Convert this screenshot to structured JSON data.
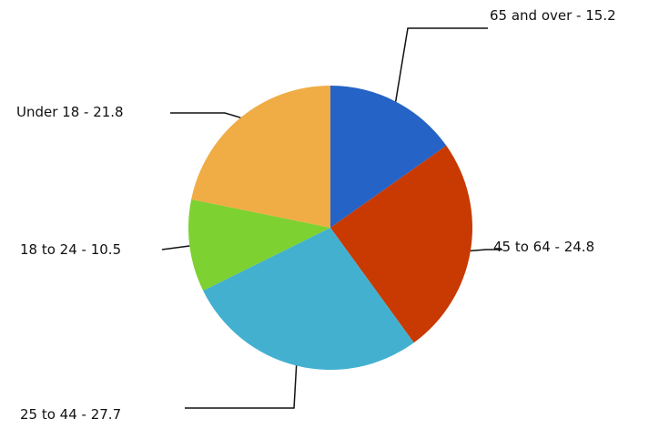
{
  "chart_data": {
    "type": "pie",
    "title": "",
    "slices": [
      {
        "label": "65 and over",
        "value": 15.2,
        "display": "65 and over - 15.2",
        "color": "#2563c7"
      },
      {
        "label": "45 to 64",
        "value": 24.8,
        "display": "45 to 64 - 24.8",
        "color": "#c83a02"
      },
      {
        "label": "25 to 44",
        "value": 27.7,
        "display": "25 to 44 - 27.7",
        "color": "#43b0d0"
      },
      {
        "label": "18 to 24",
        "value": 10.5,
        "display": "18 to 24 - 10.5",
        "color": "#7dd130"
      },
      {
        "label": "Under 18",
        "value": 21.8,
        "display": "Under 18 - 21.8",
        "color": "#f0ac45"
      }
    ],
    "start_angle": "12 o'clock",
    "direction": "clockwise",
    "legend": "none",
    "labels": "outside with leader lines"
  }
}
